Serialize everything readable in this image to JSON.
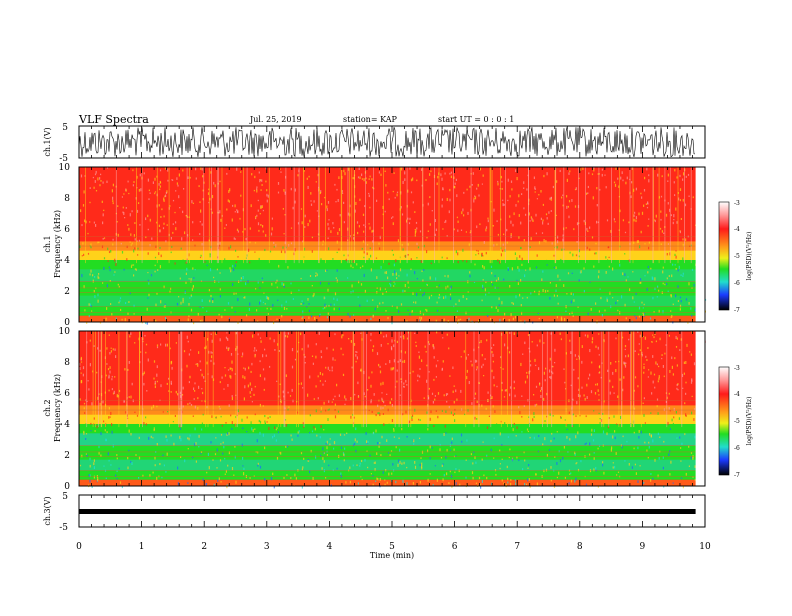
{
  "header": {
    "title": "VLF Spectra",
    "date": "Jul. 25, 2019",
    "station": "station= KAP",
    "start": "start UT =  0 : 0 : 1"
  },
  "chart_data": [
    {
      "type": "line",
      "name": "ch1-waveform",
      "ylabel": "ch.1(V)",
      "ylim": [
        -5,
        5
      ],
      "yticks": [
        "5",
        "-5"
      ],
      "xlim": [
        0,
        10
      ]
    },
    {
      "type": "heatmap",
      "name": "ch1-spectrogram",
      "ylabel": "ch.1\nFrequency (kHz)",
      "ylim": [
        0,
        10
      ],
      "yticks": [
        "0",
        "2",
        "4",
        "6",
        "8",
        "10"
      ],
      "colorbar": {
        "label": "log(PSD)(V²/Hz)",
        "ticks": [
          "-3",
          "-4",
          "-5",
          "-6",
          "-7"
        ],
        "range": [
          -7,
          -3
        ]
      }
    },
    {
      "type": "heatmap",
      "name": "ch2-spectrogram",
      "ylabel": "ch.2\nFrequency (kHz)",
      "ylim": [
        0,
        10
      ],
      "yticks": [
        "0",
        "2",
        "4",
        "6",
        "8",
        "10"
      ],
      "colorbar": {
        "label": "log(PSD)(V²/Hz)",
        "ticks": [
          "-3",
          "-4",
          "-5",
          "-6",
          "-7"
        ],
        "range": [
          -7,
          -3
        ]
      }
    },
    {
      "type": "line",
      "name": "ch3-waveform",
      "ylabel": "ch.3(V)",
      "ylim": [
        -5,
        5
      ],
      "yticks": [
        "5",
        "-5"
      ],
      "level": 0
    }
  ],
  "xaxis": {
    "label": "Time (min)",
    "range": [
      0,
      10
    ],
    "ticks": [
      "0",
      "1",
      "2",
      "3",
      "4",
      "5",
      "6",
      "7",
      "8",
      "9",
      "10"
    ],
    "data_end": 9.85
  },
  "colors": {
    "high": "#ff2a1a",
    "mid": "#ffd21a",
    "low": "#22dd22",
    "lower": "#22ccdd",
    "min": "#1a2aff"
  }
}
